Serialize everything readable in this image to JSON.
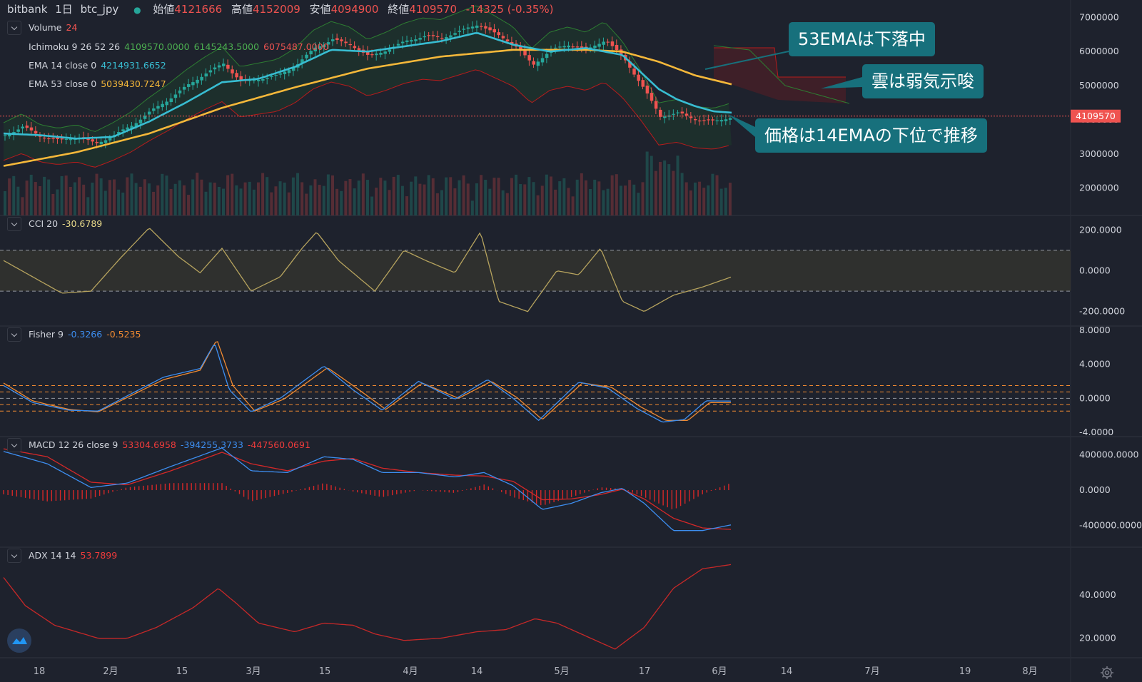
{
  "header": {
    "exchange": "bitbank",
    "interval": "1日",
    "symbol": "btc_jpy",
    "open_label": "始値",
    "open": "4121666",
    "high_label": "高値",
    "high": "4152009",
    "low_label": "安値",
    "low": "4094900",
    "close_label": "終値",
    "close": "4109570",
    "change": "-14325 (-0.35%)"
  },
  "legends": {
    "volume": {
      "name": "Volume",
      "value": "24"
    },
    "ichimoku": {
      "name": "Ichimoku 9 26 52 26",
      "v1": "4109570.0000",
      "v2": "6145243.5000",
      "v3": "6075487.0000"
    },
    "ema14": {
      "name": "EMA 14 close 0",
      "value": "4214931.6652"
    },
    "ema53": {
      "name": "EMA 53 close 0",
      "value": "5039430.7247"
    },
    "cci": {
      "name": "CCI 20",
      "value": "-30.6789"
    },
    "fisher": {
      "name": "Fisher 9",
      "v1": "-0.3266",
      "v2": "-0.5235"
    },
    "macd": {
      "name": "MACD 12 26 close 9",
      "v1": "53304.6958",
      "v2": "-394255.3733",
      "v3": "-447560.0691"
    },
    "adx": {
      "name": "ADX 14 14",
      "value": "53.7899"
    }
  },
  "callouts": {
    "ema53": "53EMAは下落中",
    "cloud": "雲は弱気示唆",
    "price": "価格は14EMAの下位で推移"
  },
  "price_tag": "4109570",
  "colors": {
    "background": "#1e222d",
    "grid": "#2a2e39",
    "up": "#26a69a",
    "down": "#ef5350",
    "ema14": "#38bdd2",
    "ema53": "#f5b83a",
    "cci": "#b6a35e",
    "fisher1": "#3d8ef0",
    "fisher2": "#f08a31",
    "macd": "#3d8ef0",
    "signal": "#d62828",
    "adx": "#c62828",
    "callout": "#17707c"
  },
  "chart_data": [
    {
      "type": "candlestick",
      "title": "bitbank 1日 btc_jpy",
      "x_tick_labels": [
        "18",
        "2月",
        "15",
        "3月",
        "15",
        "4月",
        "14",
        "5月",
        "17",
        "6月",
        "14",
        "7月",
        "19",
        "8月"
      ],
      "y_ticks": [
        2000000,
        3000000,
        4000000,
        5000000,
        6000000,
        7000000
      ],
      "ylim": [
        1200000,
        7300000
      ],
      "close_points": [
        [
          0,
          3550000.0
        ],
        [
          25,
          3800000.0
        ],
        [
          50,
          3500000.0
        ],
        [
          75,
          3400000.0
        ],
        [
          100,
          3500000.0
        ],
        [
          125,
          3300000.0
        ],
        [
          150,
          3550000.0
        ],
        [
          175,
          3850000.0
        ],
        [
          200,
          4250000.0
        ],
        [
          225,
          4600000.0
        ],
        [
          250,
          5000000.0
        ],
        [
          275,
          5350000.0
        ],
        [
          300,
          5650000.0
        ],
        [
          325,
          5100000.0
        ],
        [
          350,
          5200000.0
        ],
        [
          375,
          5300000.0
        ],
        [
          400,
          5600000.0
        ],
        [
          425,
          6100000.0
        ],
        [
          450,
          6350000.0
        ],
        [
          475,
          6200000.0
        ],
        [
          500,
          5850000.0
        ],
        [
          525,
          6050000.0
        ],
        [
          550,
          6300000.0
        ],
        [
          575,
          6450000.0
        ],
        [
          600,
          6400000.0
        ],
        [
          625,
          6600000.0
        ],
        [
          650,
          6800000.0
        ],
        [
          675,
          6500000.0
        ],
        [
          700,
          6200000.0
        ],
        [
          725,
          5600000.0
        ],
        [
          750,
          6050000.0
        ],
        [
          775,
          6200000.0
        ],
        [
          800,
          6050000.0
        ],
        [
          825,
          6350000.0
        ],
        [
          850,
          5800000.0
        ],
        [
          875,
          5000000.0
        ],
        [
          900,
          4100000.0
        ],
        [
          925,
          4200000.0
        ],
        [
          950,
          4000000.0
        ],
        [
          975,
          3950000.0
        ],
        [
          1000,
          4100000.0
        ]
      ],
      "ema14": [
        [
          0,
          3600000.0
        ],
        [
          50,
          3550000.0
        ],
        [
          100,
          3450000.0
        ],
        [
          150,
          3500000.0
        ],
        [
          200,
          3950000.0
        ],
        [
          250,
          4500000.0
        ],
        [
          300,
          5100000.0
        ],
        [
          350,
          5200000.0
        ],
        [
          400,
          5550000.0
        ],
        [
          450,
          6050000.0
        ],
        [
          500,
          6000000.0
        ],
        [
          550,
          6150000.0
        ],
        [
          600,
          6300000.0
        ],
        [
          650,
          6550000.0
        ],
        [
          700,
          6200000.0
        ],
        [
          750,
          6000000.0
        ],
        [
          800,
          6100000.0
        ],
        [
          850,
          5900000.0
        ],
        [
          875,
          5400000.0
        ],
        [
          900,
          4900000.0
        ],
        [
          925,
          4600000.0
        ],
        [
          950,
          4400000.0
        ],
        [
          975,
          4250000.0
        ],
        [
          1000,
          4210000.0
        ]
      ],
      "ema53": [
        [
          0,
          2650000.0
        ],
        [
          100,
          3050000.0
        ],
        [
          200,
          3600000.0
        ],
        [
          300,
          4350000.0
        ],
        [
          400,
          4950000.0
        ],
        [
          500,
          5500000.0
        ],
        [
          600,
          5850000.0
        ],
        [
          700,
          6050000.0
        ],
        [
          800,
          6050000.0
        ],
        [
          850,
          6000000.0
        ],
        [
          900,
          5700000.0
        ],
        [
          950,
          5300000.0
        ],
        [
          1000,
          5040000.0
        ]
      ]
    },
    {
      "type": "line",
      "name": "CCI 20",
      "y_ticks": [
        -200,
        0,
        200
      ],
      "ylim": [
        -250,
        250
      ],
      "bands": [
        -100,
        100
      ],
      "points": [
        [
          0,
          50
        ],
        [
          40,
          -30
        ],
        [
          80,
          -110
        ],
        [
          120,
          -100
        ],
        [
          160,
          60
        ],
        [
          200,
          210
        ],
        [
          240,
          70
        ],
        [
          270,
          -10
        ],
        [
          300,
          110
        ],
        [
          340,
          -100
        ],
        [
          380,
          -30
        ],
        [
          410,
          110
        ],
        [
          430,
          190
        ],
        [
          460,
          50
        ],
        [
          510,
          -100
        ],
        [
          550,
          100
        ],
        [
          580,
          50
        ],
        [
          620,
          -10
        ],
        [
          655,
          190
        ],
        [
          680,
          -150
        ],
        [
          720,
          -200
        ],
        [
          760,
          0
        ],
        [
          790,
          -20
        ],
        [
          820,
          110
        ],
        [
          850,
          -150
        ],
        [
          880,
          -200
        ],
        [
          920,
          -120
        ],
        [
          960,
          -80
        ],
        [
          1000,
          -30
        ]
      ]
    },
    {
      "type": "line",
      "name": "Fisher 9",
      "y_ticks": [
        -4,
        0,
        4,
        8
      ],
      "ylim": [
        -4,
        8
      ],
      "bands": [
        -1.5,
        -0.75,
        0,
        0.75,
        1.5
      ],
      "series": [
        {
          "points": [
            [
              0,
              1.5
            ],
            [
              40,
              -0.5
            ],
            [
              90,
              -1.4
            ],
            [
              130,
              -1.5
            ],
            [
              170,
              0.3
            ],
            [
              220,
              2.5
            ],
            [
              270,
              3.5
            ],
            [
              290,
              6.5
            ],
            [
              310,
              1
            ],
            [
              340,
              -1.6
            ],
            [
              380,
              0
            ],
            [
              440,
              3.8
            ],
            [
              480,
              1
            ],
            [
              520,
              -1.4
            ],
            [
              570,
              2
            ],
            [
              620,
              -0.1
            ],
            [
              665,
              2.2
            ],
            [
              700,
              0
            ],
            [
              735,
              -2.6
            ],
            [
              790,
              1.9
            ],
            [
              830,
              1.2
            ],
            [
              870,
              -1.2
            ],
            [
              905,
              -2.8
            ],
            [
              935,
              -2.5
            ],
            [
              965,
              -0.3
            ],
            [
              1000,
              -0.33
            ]
          ]
        },
        {
          "points": [
            [
              0,
              1.8
            ],
            [
              40,
              -0.3
            ],
            [
              90,
              -1.3
            ],
            [
              130,
              -1.6
            ],
            [
              170,
              0.1
            ],
            [
              220,
              2.2
            ],
            [
              270,
              3.3
            ],
            [
              293,
              6.9
            ],
            [
              315,
              1.5
            ],
            [
              345,
              -1.5
            ],
            [
              385,
              -0.1
            ],
            [
              445,
              3.6
            ],
            [
              485,
              1.2
            ],
            [
              525,
              -1.3
            ],
            [
              575,
              1.8
            ],
            [
              625,
              0
            ],
            [
              670,
              2.0
            ],
            [
              705,
              0.1
            ],
            [
              740,
              -2.5
            ],
            [
              795,
              1.8
            ],
            [
              835,
              1.3
            ],
            [
              875,
              -1.0
            ],
            [
              910,
              -2.6
            ],
            [
              940,
              -2.6
            ],
            [
              970,
              -0.5
            ],
            [
              1000,
              -0.52
            ]
          ]
        }
      ]
    },
    {
      "type": "line",
      "name": "MACD 12 26 close 9",
      "y_ticks": [
        -400000,
        0,
        400000
      ],
      "ylim": [
        -600000,
        560000
      ],
      "series": [
        {
          "points": [
            [
              0,
              440000
            ],
            [
              60,
              300000
            ],
            [
              120,
              30000
            ],
            [
              170,
              80000
            ],
            [
              230,
              270000
            ],
            [
              300,
              480000
            ],
            [
              340,
              220000
            ],
            [
              390,
              200000
            ],
            [
              440,
              380000
            ],
            [
              480,
              350000
            ],
            [
              520,
              200000
            ],
            [
              570,
              200000
            ],
            [
              620,
              150000
            ],
            [
              660,
              200000
            ],
            [
              700,
              50000
            ],
            [
              740,
              -220000
            ],
            [
              780,
              -150000
            ],
            [
              820,
              -30000
            ],
            [
              850,
              20000
            ],
            [
              880,
              -150000
            ],
            [
              920,
              -460000
            ],
            [
              960,
              -460000
            ],
            [
              1000,
              -394000
            ]
          ]
        },
        {
          "points": [
            [
              0,
              470000
            ],
            [
              60,
              380000
            ],
            [
              120,
              90000
            ],
            [
              170,
              60000
            ],
            [
              230,
              220000
            ],
            [
              300,
              430000
            ],
            [
              340,
              300000
            ],
            [
              390,
              220000
            ],
            [
              440,
              330000
            ],
            [
              480,
              360000
            ],
            [
              520,
              250000
            ],
            [
              570,
              200000
            ],
            [
              620,
              170000
            ],
            [
              660,
              160000
            ],
            [
              700,
              100000
            ],
            [
              740,
              -110000
            ],
            [
              780,
              -100000
            ],
            [
              820,
              -50000
            ],
            [
              850,
              10000
            ],
            [
              880,
              -100000
            ],
            [
              920,
              -320000
            ],
            [
              960,
              -430000
            ],
            [
              1000,
              -447000
            ]
          ]
        }
      ]
    },
    {
      "type": "line",
      "name": "ADX 14 14",
      "y_ticks": [
        20,
        40
      ],
      "ylim": [
        13,
        60
      ],
      "points": [
        [
          0,
          48
        ],
        [
          30,
          35
        ],
        [
          70,
          26
        ],
        [
          130,
          20
        ],
        [
          170,
          20
        ],
        [
          210,
          25
        ],
        [
          260,
          34
        ],
        [
          295,
          43
        ],
        [
          320,
          36
        ],
        [
          350,
          27
        ],
        [
          400,
          23
        ],
        [
          440,
          27
        ],
        [
          480,
          26
        ],
        [
          510,
          22
        ],
        [
          550,
          19
        ],
        [
          600,
          20
        ],
        [
          650,
          23
        ],
        [
          690,
          24
        ],
        [
          730,
          29
        ],
        [
          760,
          27
        ],
        [
          800,
          21
        ],
        [
          840,
          15
        ],
        [
          880,
          25
        ],
        [
          920,
          43
        ],
        [
          960,
          52
        ],
        [
          1000,
          54
        ]
      ]
    }
  ]
}
